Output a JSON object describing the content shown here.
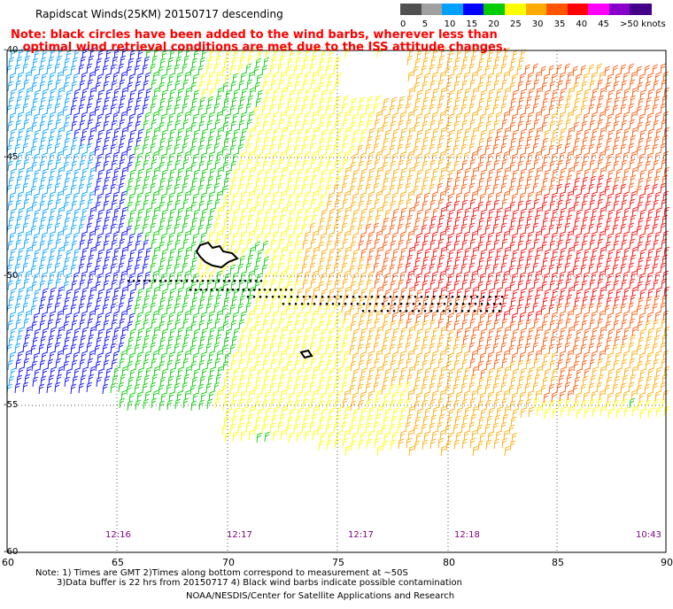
{
  "title": "Rapidscat Winds(25KM) 20150717 descending",
  "note_line1": "Note: black circles have been added to the wind barbs, wherever less than",
  "note_line2": "   optimal wind retrieval conditions are met due to the ISS attitude changes.",
  "colorbar": {
    "labels": [
      "0",
      "5",
      "10",
      "15",
      "20",
      "25",
      "30",
      "35",
      "40",
      "45",
      ">50 knots"
    ],
    "colors": [
      "#505050",
      "#a0a0a0",
      "#00a0ff",
      "#0000ff",
      "#00cc00",
      "#ffff00",
      "#ffaa00",
      "#ff5500",
      "#ff0000",
      "#ff00ff",
      "#8800cc",
      "#440088"
    ]
  },
  "lat_labels": [
    "-40",
    "-45",
    "-50",
    "-55",
    "-60"
  ],
  "lon_labels": [
    "60",
    "65",
    "70",
    "75",
    "80",
    "85",
    "90"
  ],
  "time_labels": [
    "12:16",
    "12:17",
    "12:17",
    "12:18",
    "10:43"
  ],
  "footnote1": "Note: 1) Times are GMT 2)Times along bottom correspond to measurement at ~50S",
  "footnote2": "3)Data buffer is 22 hrs from 20150717 4) Black wind barbs indicate possible contamination",
  "credit": "NOAA/NESDIS/Center for Satellite Applications and Research"
}
